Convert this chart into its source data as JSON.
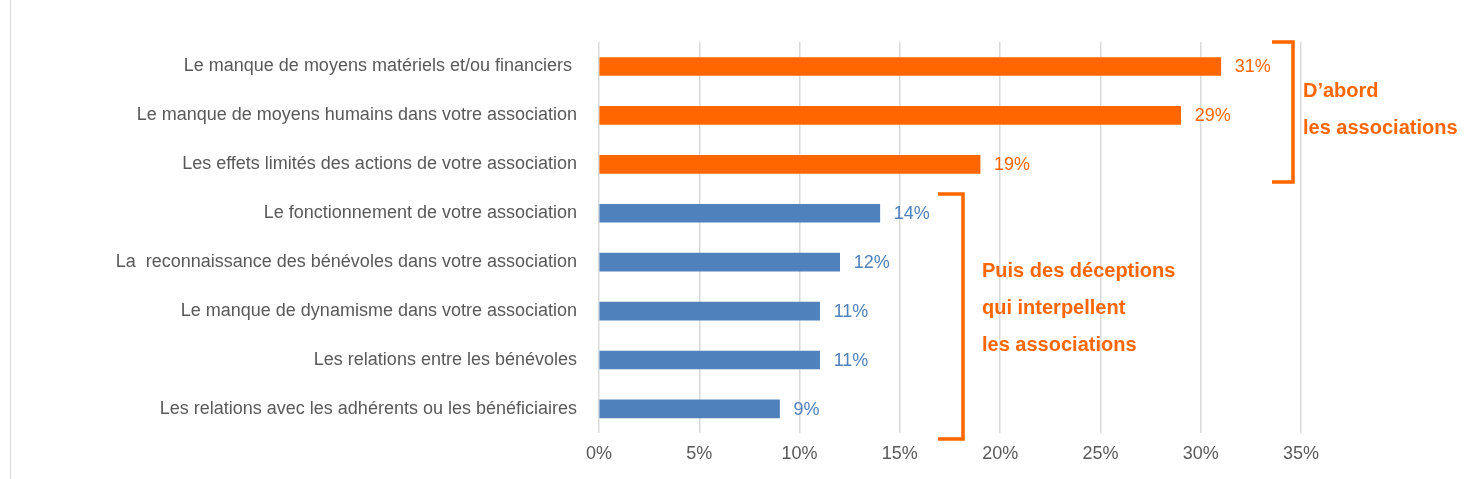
{
  "chart_data": {
    "type": "bar",
    "orientation": "horizontal",
    "categories": [
      "Le manque de moyens matériels et/ou financiers ",
      "Le manque de moyens humains dans votre association",
      "Les effets limités des actions de votre association",
      "Le fonctionnement de votre association",
      "La  reconnaissance des bénévoles dans votre association",
      "Le manque de dynamisme dans votre association",
      "Les relations entre les bénévoles",
      "Les relations avec les adhérents ou les bénéficiaires"
    ],
    "values": [
      31,
      29,
      19,
      14,
      12,
      11,
      11,
      9
    ],
    "colors": [
      "#ff6600",
      "#ff6600",
      "#ff6600",
      "#4f81bd",
      "#4f81bd",
      "#4f81bd",
      "#4f81bd",
      "#4f81bd"
    ],
    "value_labels": [
      "31%",
      "29%",
      "19%",
      "14%",
      "12%",
      "11%",
      "11%",
      "9%"
    ],
    "xlim": [
      0,
      35
    ],
    "xticks": [
      {
        "value": 0,
        "label": "0%"
      },
      {
        "value": 5,
        "label": "5%"
      },
      {
        "value": 10,
        "label": "10%"
      },
      {
        "value": 15,
        "label": "15%"
      },
      {
        "value": 20,
        "label": "20%"
      },
      {
        "value": 25,
        "label": "25%"
      },
      {
        "value": 30,
        "label": "30%"
      },
      {
        "value": 35,
        "label": "35%"
      }
    ],
    "grid": "x",
    "legend": false,
    "annotations": [
      "D’abord\nles associations",
      "Puis des déceptions\nqui interpellent\nles associations"
    ]
  }
}
